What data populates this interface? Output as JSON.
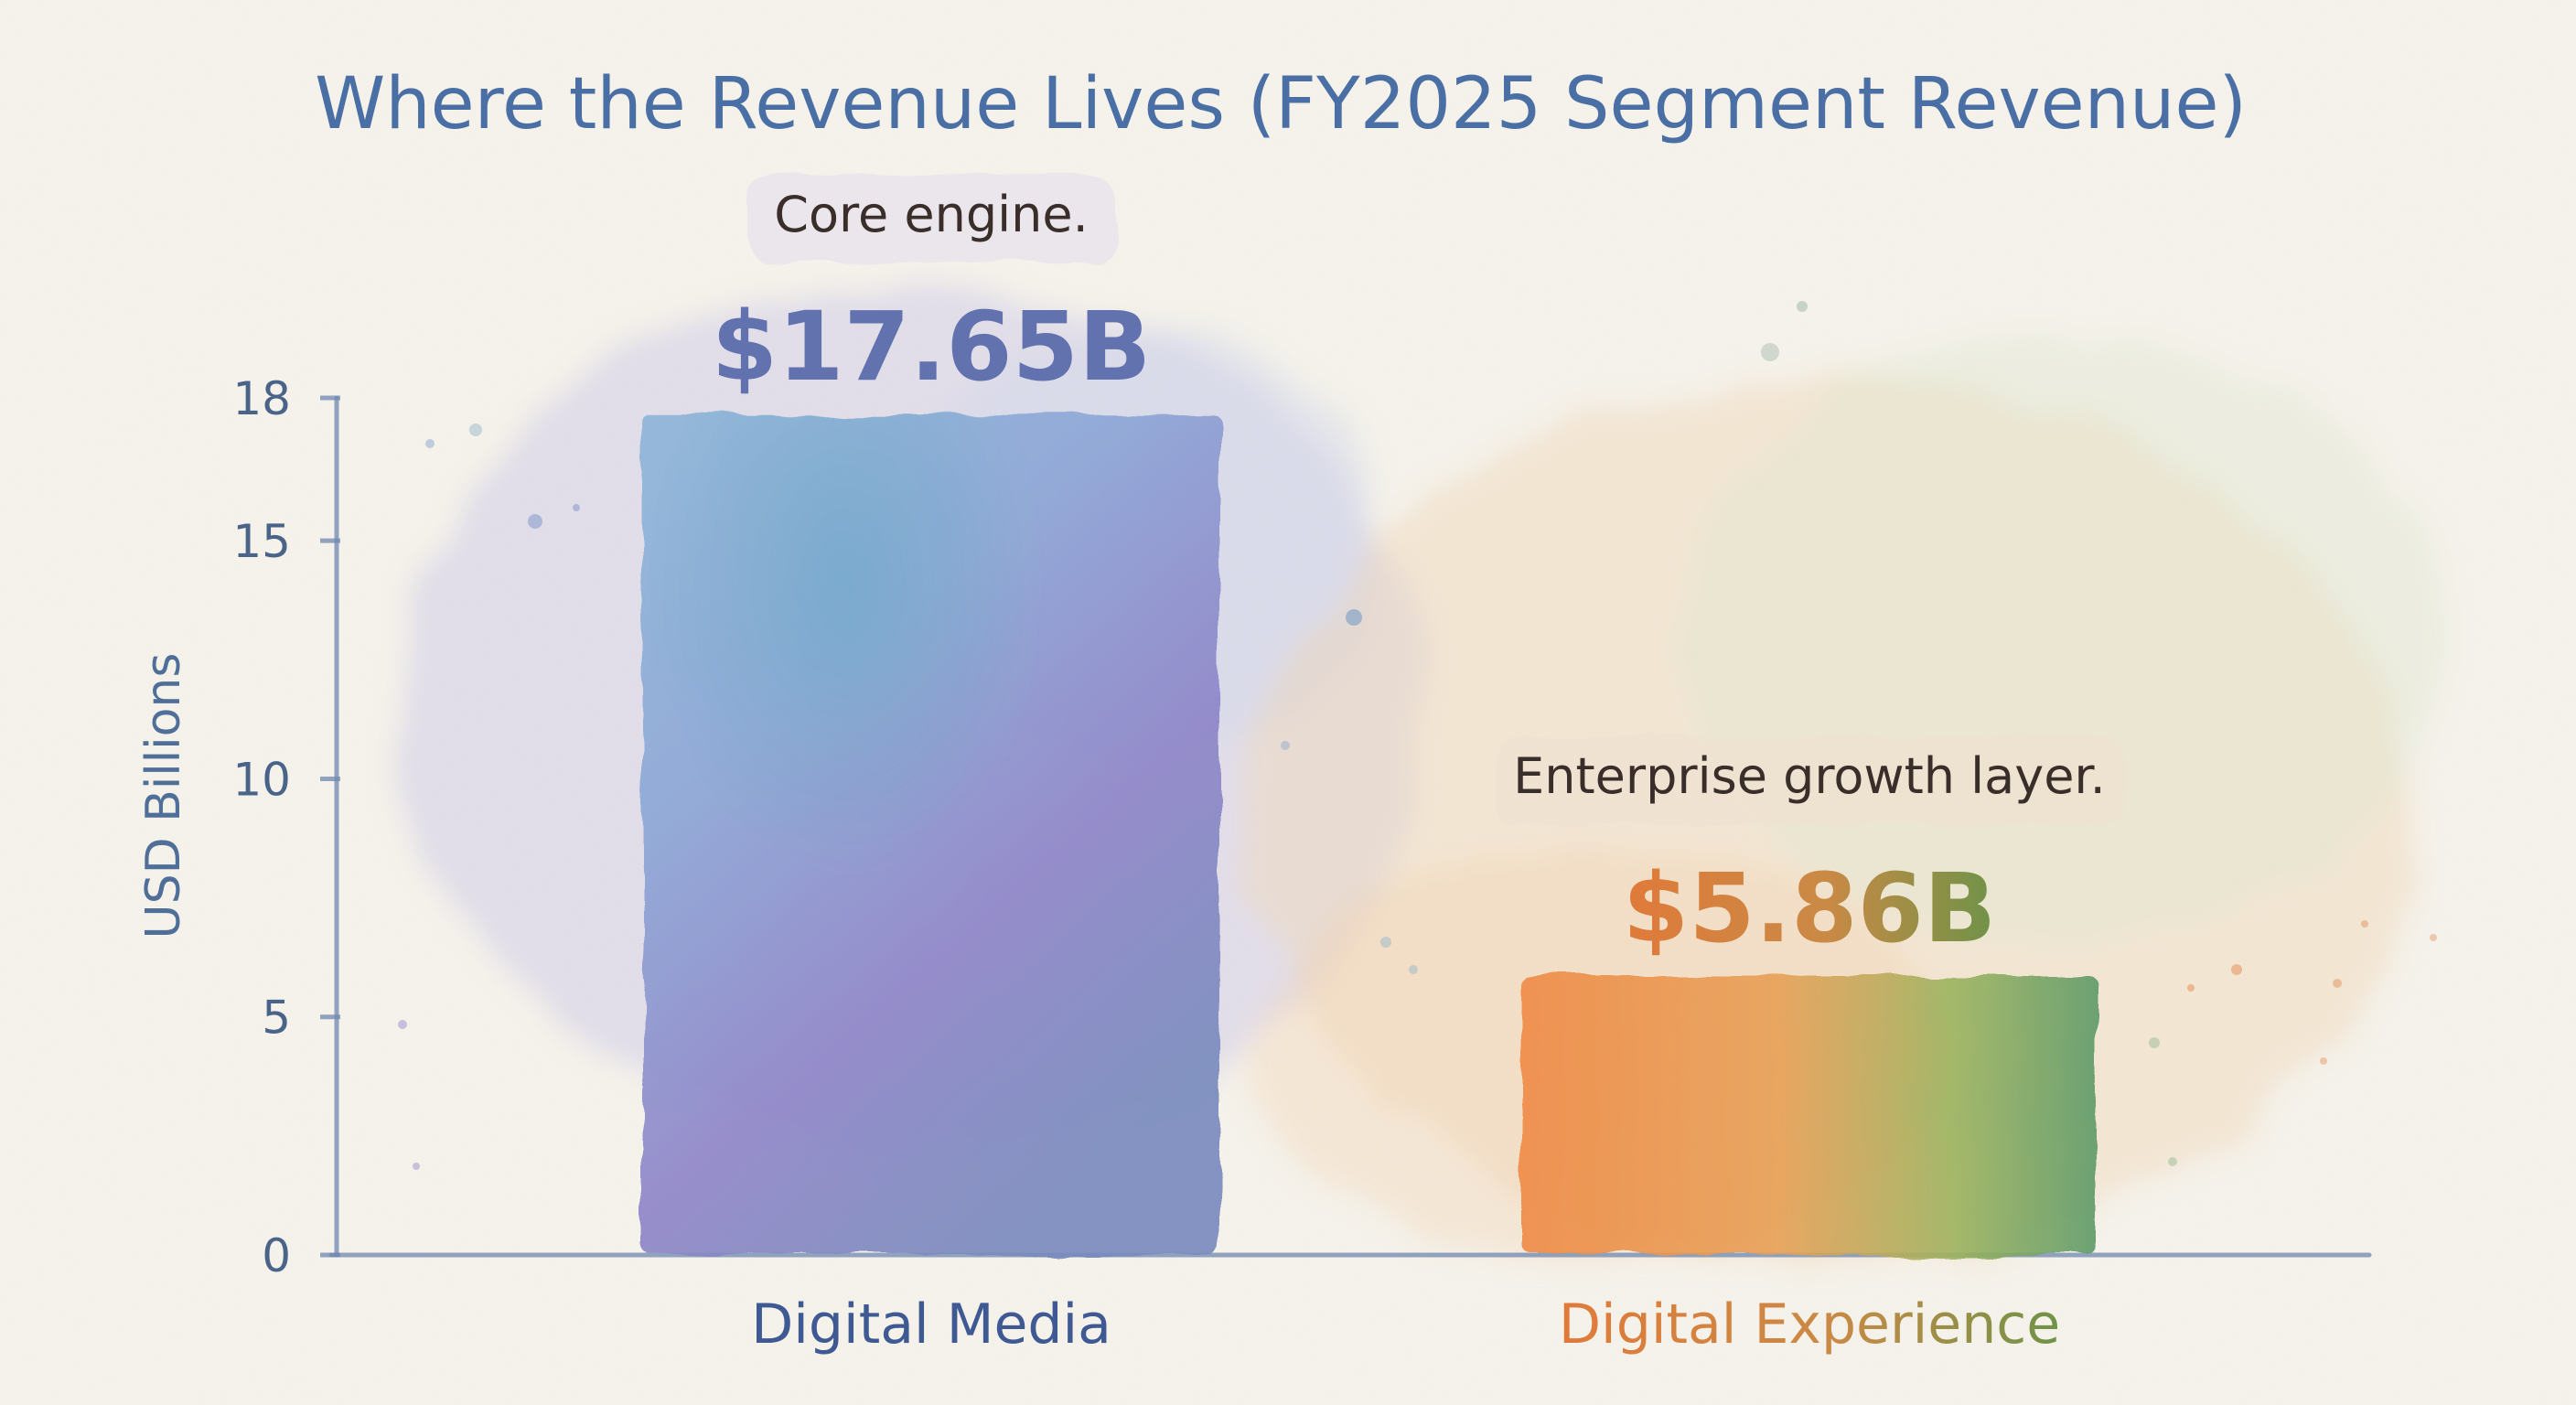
{
  "chart_data": {
    "type": "bar",
    "title": "Where the Revenue Lives (FY2025 Segment Revenue)",
    "ylabel": "USD Billions",
    "xlabel": "",
    "ylim": [
      0,
      18
    ],
    "yticks": [
      0,
      5,
      10,
      15,
      18
    ],
    "categories": [
      "Digital Media",
      "Digital Experience"
    ],
    "values": [
      17.65,
      5.86
    ],
    "data_labels": [
      "$17.65B",
      "$5.86B"
    ],
    "annotations": [
      "Core engine.",
      "Enterprise growth layer."
    ],
    "grid": false,
    "colors": {
      "title": "#4a6fa5",
      "axis": "#6f87b0",
      "digital_media_light": "#8fb4d6",
      "digital_media_dark": "#7d78bf",
      "digital_experience_orange": "#e9843f",
      "digital_experience_green": "#6a9e5a",
      "digital_media_label": "#3f5a93",
      "digital_experience_label_orange": "#d8773a",
      "digital_experience_label_green": "#4f7a3e"
    }
  }
}
